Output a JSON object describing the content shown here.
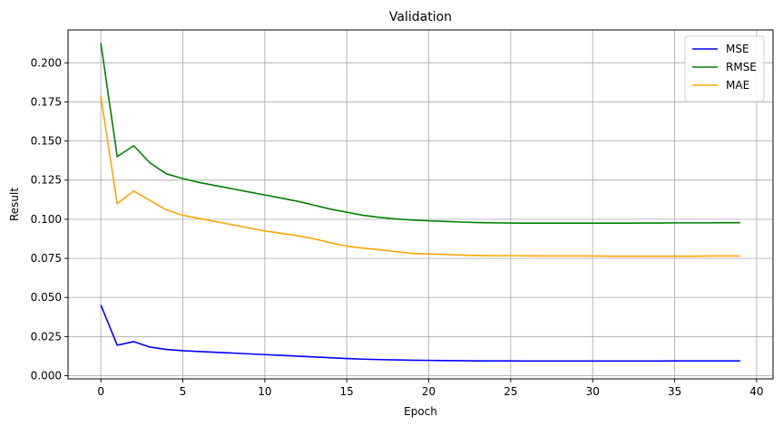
{
  "chart_data": {
    "type": "line",
    "title": "Validation",
    "xlabel": "Epoch",
    "ylabel": "Result",
    "xlim": [
      -2,
      41
    ],
    "ylim": [
      -0.002,
      0.221
    ],
    "xticks": [
      0,
      5,
      10,
      15,
      20,
      25,
      30,
      35,
      40
    ],
    "xtick_labels": [
      "0",
      "5",
      "10",
      "15",
      "20",
      "25",
      "30",
      "35",
      "40"
    ],
    "yticks": [
      0.0,
      0.025,
      0.05,
      0.075,
      0.1,
      0.125,
      0.15,
      0.175,
      0.2
    ],
    "ytick_labels": [
      "0.000",
      "0.025",
      "0.050",
      "0.075",
      "0.100",
      "0.125",
      "0.150",
      "0.175",
      "0.200"
    ],
    "grid": true,
    "legend_position": "top-right",
    "x": [
      0,
      1,
      2,
      3,
      4,
      5,
      6,
      7,
      8,
      9,
      10,
      11,
      12,
      13,
      14,
      15,
      16,
      17,
      18,
      19,
      20,
      21,
      22,
      23,
      24,
      25,
      26,
      27,
      28,
      29,
      30,
      31,
      32,
      33,
      34,
      35,
      36,
      37,
      38,
      39
    ],
    "series": [
      {
        "name": "MSE",
        "color": "#0000ff",
        "values": [
          0.0452,
          0.0195,
          0.0218,
          0.0183,
          0.0168,
          0.016,
          0.0155,
          0.015,
          0.0145,
          0.014,
          0.0135,
          0.013,
          0.0125,
          0.012,
          0.0115,
          0.011,
          0.0106,
          0.0103,
          0.0101,
          0.0099,
          0.0098,
          0.0097,
          0.0096,
          0.0095,
          0.0095,
          0.0095,
          0.0094,
          0.0094,
          0.0094,
          0.0094,
          0.0094,
          0.0094,
          0.0094,
          0.0094,
          0.0094,
          0.0095,
          0.0095,
          0.0095,
          0.0095,
          0.0095
        ]
      },
      {
        "name": "RMSE",
        "color": "#008000",
        "values": [
          0.2125,
          0.14,
          0.147,
          0.136,
          0.129,
          0.126,
          0.1235,
          0.1215,
          0.1195,
          0.1175,
          0.1155,
          0.1135,
          0.1115,
          0.109,
          0.1065,
          0.1045,
          0.1025,
          0.1012,
          0.1002,
          0.0995,
          0.099,
          0.0986,
          0.0982,
          0.0979,
          0.0977,
          0.0976,
          0.0975,
          0.0975,
          0.0975,
          0.0975,
          0.0975,
          0.0975,
          0.0975,
          0.0976,
          0.0976,
          0.0977,
          0.0977,
          0.0977,
          0.0978,
          0.0978
        ]
      },
      {
        "name": "MAE",
        "color": "#ffa500",
        "values": [
          0.1785,
          0.11,
          0.118,
          0.112,
          0.106,
          0.1025,
          0.1005,
          0.0985,
          0.0965,
          0.0945,
          0.0925,
          0.091,
          0.0895,
          0.0875,
          0.085,
          0.0828,
          0.0815,
          0.0805,
          0.0793,
          0.0782,
          0.0778,
          0.0775,
          0.0771,
          0.0768,
          0.0767,
          0.0767,
          0.0766,
          0.0765,
          0.0765,
          0.0765,
          0.0765,
          0.0764,
          0.0764,
          0.0764,
          0.0764,
          0.0764,
          0.0764,
          0.0765,
          0.0765,
          0.0765
        ]
      }
    ]
  }
}
